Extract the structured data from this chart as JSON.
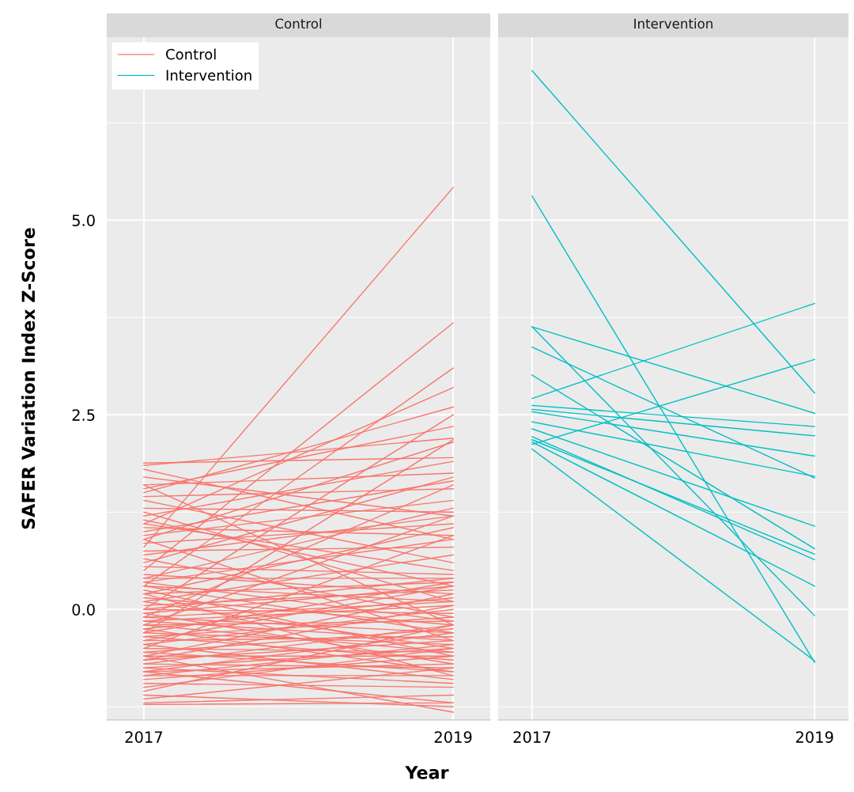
{
  "chart_data": [
    {
      "type": "line",
      "title": "Control",
      "xlabel": "Year",
      "ylabel": "SAFER Variation Index Z-Score",
      "categories": [
        "2017",
        "2019"
      ],
      "ylim": [
        -1.42,
        7.35
      ],
      "yticks": [
        {
          "value": -1.25,
          "label": null
        },
        {
          "value": 0,
          "label": "0.0"
        },
        {
          "value": 1.25,
          "label": null
        },
        {
          "value": 2.5,
          "label": "2.5"
        },
        {
          "value": 3.75,
          "label": null
        },
        {
          "value": 5,
          "label": "5.0"
        },
        {
          "value": 6.25,
          "label": null
        }
      ],
      "grid": true,
      "legend": "top left",
      "series": [
        {
          "name": "Control",
          "color": "#f8766d",
          "values": [
            0.8,
            5.42
          ]
        },
        {
          "color": "#f8766d",
          "values": [
            0.5,
            3.68
          ]
        },
        {
          "color": "#f8766d",
          "values": [
            0.3,
            3.1
          ]
        },
        {
          "color": "#f8766d",
          "values": [
            1.1,
            2.85
          ]
        },
        {
          "color": "#f8766d",
          "values": [
            1.5,
            2.6
          ]
        },
        {
          "color": "#f8766d",
          "values": [
            0.0,
            2.5
          ]
        },
        {
          "color": "#f8766d",
          "values": [
            1.85,
            2.2
          ]
        },
        {
          "color": "#f8766d",
          "values": [
            1.55,
            2.35
          ]
        },
        {
          "color": "#f8766d",
          "values": [
            -0.3,
            2.18
          ]
        },
        {
          "color": "#f8766d",
          "values": [
            0.9,
            2.15
          ]
        },
        {
          "color": "#f8766d",
          "values": [
            1.88,
            1.95
          ]
        },
        {
          "color": "#f8766d",
          "values": [
            1.6,
            1.75
          ]
        },
        {
          "color": "#f8766d",
          "values": [
            1.2,
            1.9
          ]
        },
        {
          "color": "#f8766d",
          "values": [
            0.6,
            1.7
          ]
        },
        {
          "color": "#f8766d",
          "values": [
            -0.1,
            1.6
          ]
        },
        {
          "color": "#f8766d",
          "values": [
            1.45,
            1.55
          ]
        },
        {
          "color": "#f8766d",
          "values": [
            1.7,
            1.2
          ]
        },
        {
          "color": "#f8766d",
          "values": [
            1.8,
            0.9
          ]
        },
        {
          "color": "#f8766d",
          "values": [
            1.3,
            1.25
          ]
        },
        {
          "color": "#f8766d",
          "values": [
            1.0,
            1.65
          ]
        },
        {
          "color": "#f8766d",
          "values": [
            0.95,
            1.4
          ]
        },
        {
          "color": "#f8766d",
          "values": [
            1.4,
            0.6
          ]
        },
        {
          "color": "#f8766d",
          "values": [
            1.15,
            0.3
          ]
        },
        {
          "color": "#f8766d",
          "values": [
            0.7,
            1.2
          ]
        },
        {
          "color": "#f8766d",
          "values": [
            0.85,
            1.1
          ]
        },
        {
          "color": "#f8766d",
          "values": [
            1.05,
            0.95
          ]
        },
        {
          "color": "#f8766d",
          "values": [
            0.4,
            1.3
          ]
        },
        {
          "color": "#f8766d",
          "values": [
            0.2,
            1.05
          ]
        },
        {
          "color": "#f8766d",
          "values": [
            1.6,
            -0.2
          ]
        },
        {
          "color": "#f8766d",
          "values": [
            1.25,
            0.1
          ]
        },
        {
          "color": "#f8766d",
          "values": [
            0.75,
            0.8
          ]
        },
        {
          "color": "#f8766d",
          "values": [
            0.55,
            0.45
          ]
        },
        {
          "color": "#f8766d",
          "values": [
            0.35,
            0.9
          ]
        },
        {
          "color": "#f8766d",
          "values": [
            0.1,
            0.7
          ]
        },
        {
          "color": "#f8766d",
          "values": [
            0.9,
            -0.4
          ]
        },
        {
          "color": "#f8766d",
          "values": [
            0.65,
            -0.1
          ]
        },
        {
          "color": "#f8766d",
          "values": [
            1.1,
            0.5
          ]
        },
        {
          "color": "#f8766d",
          "values": [
            0.45,
            0.2
          ]
        },
        {
          "color": "#f8766d",
          "values": [
            -0.2,
            1.2
          ]
        },
        {
          "color": "#f8766d",
          "values": [
            -0.5,
            0.95
          ]
        },
        {
          "color": "#f8766d",
          "values": [
            0.25,
            -0.6
          ]
        },
        {
          "color": "#f8766d",
          "values": [
            0.4,
            0.4
          ]
        },
        {
          "color": "#f8766d",
          "values": [
            0.3,
            0.1
          ]
        },
        {
          "color": "#f8766d",
          "values": [
            0.2,
            0.35
          ]
        },
        {
          "color": "#f8766d",
          "values": [
            0.15,
            -0.2
          ]
        },
        {
          "color": "#f8766d",
          "values": [
            0.05,
            0.25
          ]
        },
        {
          "color": "#f8766d",
          "values": [
            0.0,
            -0.05
          ]
        },
        {
          "color": "#f8766d",
          "values": [
            -0.05,
            0.3
          ]
        },
        {
          "color": "#f8766d",
          "values": [
            -0.1,
            -0.3
          ]
        },
        {
          "color": "#f8766d",
          "values": [
            -0.15,
            0.05
          ]
        },
        {
          "color": "#f8766d",
          "values": [
            -0.2,
            -0.15
          ]
        },
        {
          "color": "#f8766d",
          "values": [
            -0.25,
            0.15
          ]
        },
        {
          "color": "#f8766d",
          "values": [
            -0.3,
            -0.45
          ]
        },
        {
          "color": "#f8766d",
          "values": [
            -0.35,
            -0.1
          ]
        },
        {
          "color": "#f8766d",
          "values": [
            -0.4,
            -0.35
          ]
        },
        {
          "color": "#f8766d",
          "values": [
            -0.45,
            0.0
          ]
        },
        {
          "color": "#f8766d",
          "values": [
            -0.5,
            -0.55
          ]
        },
        {
          "color": "#f8766d",
          "values": [
            -0.55,
            -0.25
          ]
        },
        {
          "color": "#f8766d",
          "values": [
            -0.6,
            -0.6
          ]
        },
        {
          "color": "#f8766d",
          "values": [
            -0.65,
            -0.4
          ]
        },
        {
          "color": "#f8766d",
          "values": [
            -0.7,
            -0.75
          ]
        },
        {
          "color": "#f8766d",
          "values": [
            -0.75,
            -0.5
          ]
        },
        {
          "color": "#f8766d",
          "values": [
            -0.8,
            -0.7
          ]
        },
        {
          "color": "#f8766d",
          "values": [
            -0.85,
            -0.85
          ]
        },
        {
          "color": "#f8766d",
          "values": [
            0.1,
            -0.5
          ]
        },
        {
          "color": "#f8766d",
          "values": [
            -0.05,
            -0.7
          ]
        },
        {
          "color": "#f8766d",
          "values": [
            -0.25,
            -0.8
          ]
        },
        {
          "color": "#f8766d",
          "values": [
            -0.4,
            0.3
          ]
        },
        {
          "color": "#f8766d",
          "values": [
            -0.6,
            0.2
          ]
        },
        {
          "color": "#f8766d",
          "values": [
            -0.7,
            -0.2
          ]
        },
        {
          "color": "#f8766d",
          "values": [
            -0.35,
            -0.65
          ]
        },
        {
          "color": "#f8766d",
          "values": [
            -0.15,
            -0.4
          ]
        },
        {
          "color": "#f8766d",
          "values": [
            0.3,
            -0.3
          ]
        },
        {
          "color": "#f8766d",
          "values": [
            -0.55,
            -0.8
          ]
        },
        {
          "color": "#f8766d",
          "values": [
            -0.8,
            -0.3
          ]
        },
        {
          "color": "#f8766d",
          "values": [
            -0.9,
            -0.6
          ]
        },
        {
          "color": "#f8766d",
          "values": [
            0.2,
            -0.85
          ]
        },
        {
          "color": "#f8766d",
          "values": [
            -0.45,
            -0.9
          ]
        },
        {
          "color": "#f8766d",
          "values": [
            0.0,
            0.4
          ]
        },
        {
          "color": "#f8766d",
          "values": [
            -0.3,
            0.35
          ]
        },
        {
          "color": "#f8766d",
          "values": [
            -0.1,
            0.1
          ]
        },
        {
          "color": "#f8766d",
          "values": [
            -0.65,
            0.05
          ]
        },
        {
          "color": "#f8766d",
          "values": [
            -0.2,
            -0.55
          ]
        },
        {
          "color": "#f8766d",
          "values": [
            0.35,
            -0.15
          ]
        },
        {
          "color": "#f8766d",
          "values": [
            -0.75,
            -0.95
          ]
        },
        {
          "color": "#f8766d",
          "values": [
            -0.85,
            -0.45
          ]
        },
        {
          "color": "#f8766d",
          "values": [
            -1.2,
            -1.1
          ]
        },
        {
          "color": "#f8766d",
          "values": [
            -1.15,
            -0.75
          ]
        },
        {
          "color": "#f8766d",
          "values": [
            -1.1,
            -1.25
          ]
        },
        {
          "color": "#f8766d",
          "values": [
            -1.05,
            -0.2
          ]
        },
        {
          "color": "#f8766d",
          "values": [
            -0.6,
            -1.32
          ]
        },
        {
          "color": "#f8766d",
          "values": [
            -0.8,
            -1.2
          ]
        },
        {
          "color": "#f8766d",
          "values": [
            -1.22,
            -1.2
          ]
        },
        {
          "color": "#f8766d",
          "values": [
            -0.95,
            -1.0
          ]
        },
        {
          "color": "#f8766d",
          "values": [
            -1.0,
            -0.5
          ]
        }
      ]
    },
    {
      "type": "line",
      "title": "Intervention",
      "categories": [
        "2017",
        "2019"
      ],
      "ylim": [
        -1.42,
        7.35
      ],
      "yticks": [
        {
          "value": -1.25,
          "label": null
        },
        0,
        {
          "value": 1.25,
          "label": null
        },
        2.5,
        {
          "value": 3.75,
          "label": null
        },
        5,
        {
          "value": 6.25,
          "label": null
        }
      ],
      "grid": true,
      "tick_labels": "x",
      "series": [
        {
          "name": "Intervention",
          "color": "#00bfc4",
          "values": [
            6.92,
            2.78
          ]
        },
        {
          "color": "#00bfc4",
          "values": [
            5.31,
            -0.68
          ]
        },
        {
          "color": "#00bfc4",
          "values": [
            3.63,
            -0.08
          ]
        },
        {
          "color": "#00bfc4",
          "values": [
            3.63,
            2.52
          ]
        },
        {
          "color": "#00bfc4",
          "values": [
            3.37,
            1.69
          ]
        },
        {
          "color": "#00bfc4",
          "values": [
            3.01,
            0.78
          ]
        },
        {
          "color": "#00bfc4",
          "values": [
            2.71,
            3.93
          ]
        },
        {
          "color": "#00bfc4",
          "values": [
            2.12,
            3.21
          ]
        },
        {
          "color": "#00bfc4",
          "values": [
            2.62,
            2.35
          ]
        },
        {
          "color": "#00bfc4",
          "values": [
            2.57,
            2.23
          ]
        },
        {
          "color": "#00bfc4",
          "values": [
            2.54,
            1.97
          ]
        },
        {
          "color": "#00bfc4",
          "values": [
            2.41,
            1.71
          ]
        },
        {
          "color": "#00bfc4",
          "values": [
            2.32,
            1.07
          ]
        },
        {
          "color": "#00bfc4",
          "values": [
            2.18,
            0.71
          ]
        },
        {
          "color": "#00bfc4",
          "values": [
            2.22,
            0.64
          ]
        },
        {
          "color": "#00bfc4",
          "values": [
            2.15,
            0.3
          ]
        },
        {
          "color": "#00bfc4",
          "values": [
            2.06,
            -0.66
          ]
        }
      ]
    }
  ]
}
